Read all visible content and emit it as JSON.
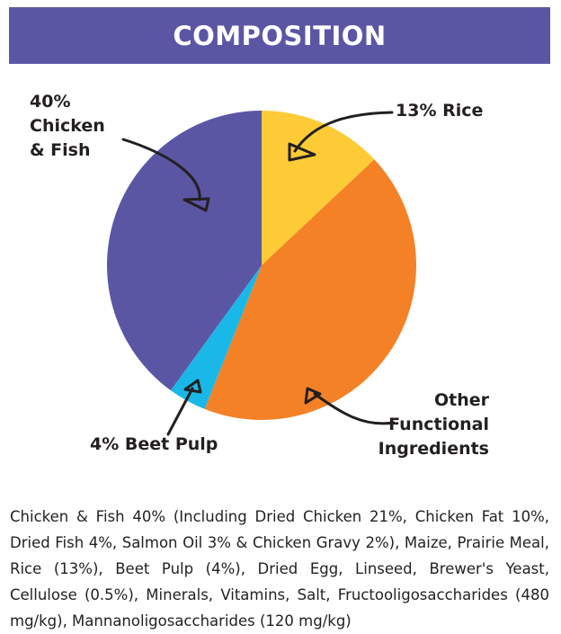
{
  "header": {
    "title": "COMPOSITION"
  },
  "colors": {
    "chicken_fish": "#5b56a4",
    "beet_pulp": "#19b8e8",
    "other": "#f48126",
    "rice": "#fdcb36",
    "banner": "#5b56a4"
  },
  "chart_data": {
    "type": "pie",
    "slices": [
      {
        "name": "Rice",
        "value": 13,
        "color": "#fdcb36"
      },
      {
        "name": "Other Functional Ingredients",
        "value": 43,
        "color": "#f48126"
      },
      {
        "name": "Beet Pulp",
        "value": 4,
        "color": "#19b8e8"
      },
      {
        "name": "Chicken & Fish",
        "value": 40,
        "color": "#5b56a4"
      }
    ],
    "start": "12 o'clock",
    "direction": "clockwise"
  },
  "labels": {
    "chicken_line1": "40%",
    "chicken_line2": "Chicken",
    "chicken_line3": "& Fish",
    "rice": "13% Rice",
    "beet": "4% Beet Pulp",
    "other_line1": "Other",
    "other_line2": "Functional",
    "other_line3": "Ingredients"
  },
  "description": "Chicken & Fish 40% (Including Dried Chicken 21%, Chicken Fat 10%, Dried Fish 4%, Salmon Oil 3% & Chicken Gravy 2%), Maize, Prairie Meal, Rice (13%), Beet Pulp (4%), Dried Egg, Linseed, Brewer's Yeast, Cellulose (0.5%), Minerals, Vitamins, Salt, Fructooligosaccharides (480 mg/kg), Mannanoligosaccharides (120 mg/kg)"
}
